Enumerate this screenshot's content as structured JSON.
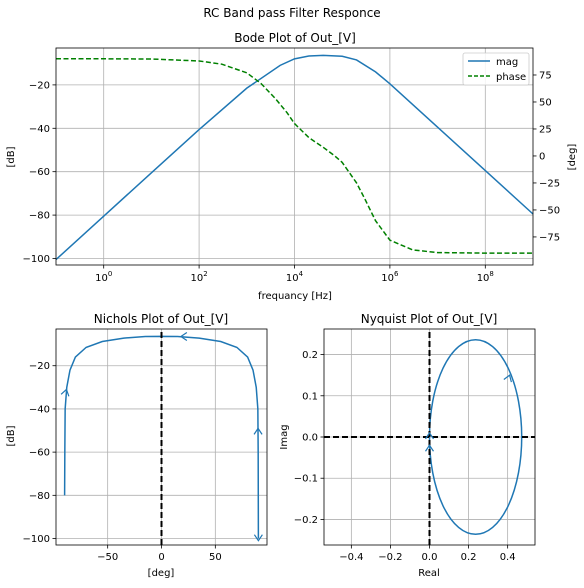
{
  "suptitle": "RC Band pass Filter Responce",
  "chart_data": [
    {
      "type": "line",
      "title": "Bode Plot of Out_[V]",
      "xlabel": "frequancy [Hz]",
      "ylabel": "[dB]",
      "y2label": "[deg]",
      "xscale": "log",
      "xlim": [
        0.1,
        1000000000
      ],
      "ylim": [
        -103,
        -3
      ],
      "y2lim": [
        -101,
        100
      ],
      "xticks": [
        {
          "value": 1,
          "base": "10",
          "exp": "0"
        },
        {
          "value": 100,
          "base": "10",
          "exp": "2"
        },
        {
          "value": 10000,
          "base": "10",
          "exp": "4"
        },
        {
          "value": 1000000,
          "base": "10",
          "exp": "6"
        },
        {
          "value": 100000000,
          "base": "10",
          "exp": "8"
        }
      ],
      "yticks": [
        "−20",
        "−40",
        "−60",
        "−80",
        "−100"
      ],
      "yticks_values": [
        -20,
        -40,
        -60,
        -80,
        -100
      ],
      "y2ticks": [
        "75",
        "50",
        "25",
        "0",
        "−25",
        "−50",
        "−75"
      ],
      "y2ticks_values": [
        75,
        50,
        25,
        0,
        -25,
        -50,
        -75
      ],
      "grid": true,
      "legend": {
        "position": "top-right"
      },
      "series": [
        {
          "name": "mag",
          "axis": "left",
          "color": "#1f77b4",
          "style": "solid",
          "x": [
            0.1,
            1,
            10,
            100,
            1000,
            5000,
            10000,
            20000,
            40000,
            100000,
            200000,
            500000,
            1000000,
            10000000,
            100000000,
            1000000000
          ],
          "y": [
            -100.5,
            -80.5,
            -60.5,
            -40.6,
            -21.5,
            -11.0,
            -8.0,
            -6.7,
            -6.4,
            -6.8,
            -8.5,
            -14.0,
            -19.5,
            -39.5,
            -59.5,
            -79.5
          ]
        },
        {
          "name": "phase",
          "axis": "right",
          "color": "#008000",
          "style": "dashed",
          "x": [
            0.1,
            1,
            10,
            100,
            300,
            1000,
            2000,
            4000,
            7000,
            10000,
            20000,
            40000,
            70000,
            100000,
            200000,
            300000,
            500000,
            1000000,
            3000000,
            10000000,
            100000000,
            1000000000
          ],
          "y": [
            90,
            90,
            89.8,
            88,
            85,
            77,
            67,
            53,
            40,
            30,
            17,
            8,
            0,
            -6,
            -25,
            -40,
            -60,
            -78,
            -87,
            -89.5,
            -90,
            -90
          ]
        }
      ]
    },
    {
      "type": "line",
      "title": "Nichols Plot of Out_[V]",
      "xlabel": "[deg]",
      "ylabel": "[dB]",
      "xlim": [
        -98,
        98
      ],
      "ylim": [
        -103,
        -3
      ],
      "xticks": [
        "−50",
        "0",
        "50"
      ],
      "xticks_values": [
        -50,
        0,
        50
      ],
      "yticks": [
        "−20",
        "−40",
        "−60",
        "−80",
        "−100"
      ],
      "yticks_values": [
        -20,
        -40,
        -60,
        -80,
        -100
      ],
      "grid": true,
      "series": [
        {
          "color": "#1f77b4",
          "x": [
            -90,
            -89.8,
            -89.5,
            -88,
            -85,
            -80,
            -70,
            -55,
            -35,
            -15,
            0,
            15,
            35,
            55,
            70,
            80,
            85,
            88,
            89.5,
            89.8,
            90
          ],
          "y": [
            -80,
            -60,
            -40,
            -30,
            -22,
            -16,
            -11.5,
            -8.8,
            -7.2,
            -6.5,
            -6.4,
            -6.5,
            -7.2,
            -8.8,
            -11.5,
            -16,
            -22,
            -30,
            -40,
            -60,
            -100
          ]
        },
        {
          "color": "#000000",
          "style": "dashed",
          "x": [
            0,
            0
          ],
          "y": [
            -103,
            -3
          ]
        }
      ]
    },
    {
      "type": "line",
      "title": "Nyquist Plot of Out_[V]",
      "xlabel": "Real",
      "ylabel": "Imag",
      "xlim": [
        -0.54,
        0.54
      ],
      "ylim": [
        -0.262,
        0.262
      ],
      "xticks": [
        "−0.4",
        "−0.2",
        "0.0",
        "0.2",
        "0.4"
      ],
      "xticks_values": [
        -0.4,
        -0.2,
        0,
        0.2,
        0.4
      ],
      "yticks": [
        "0.2",
        "0.1",
        "0.0",
        "−0.1",
        "−0.2"
      ],
      "yticks_values": [
        0.2,
        0.1,
        0,
        -0.1,
        -0.2
      ],
      "grid": true,
      "series": [
        {
          "color": "#1f77b4",
          "shape": "circle",
          "center": [
            0.236,
            0
          ],
          "radius": 0.236
        },
        {
          "color": "#000000",
          "style": "dashed",
          "x": [
            -0.54,
            0.54
          ],
          "y": [
            0,
            0
          ]
        },
        {
          "color": "#000000",
          "style": "dashed",
          "x": [
            0,
            0
          ],
          "y": [
            -0.262,
            0.262
          ]
        }
      ]
    }
  ]
}
